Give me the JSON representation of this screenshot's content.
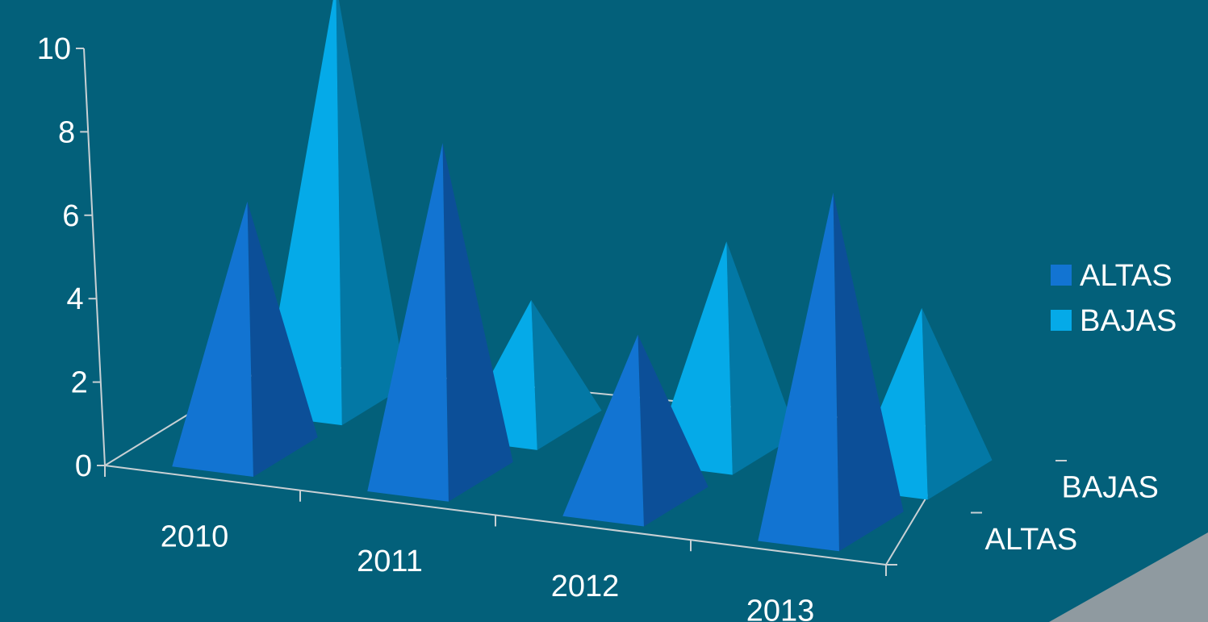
{
  "chart_data": {
    "type": "bar",
    "style": "3d-pyramid",
    "categories": [
      "2010",
      "2011",
      "2012",
      "2013"
    ],
    "depth_categories": [
      "ALTAS",
      "BAJAS"
    ],
    "series": [
      {
        "name": "ALTAS",
        "values": [
          6,
          8,
          4,
          8
        ]
      },
      {
        "name": "BAJAS",
        "values": [
          10,
          3,
          5,
          4
        ]
      }
    ],
    "y_ticks": [
      "0",
      "2",
      "4",
      "6",
      "8",
      "10"
    ],
    "ylim": [
      0,
      10
    ],
    "legend_position": "right",
    "colors": {
      "background": "#03607a",
      "ALTAS": "#1274d2",
      "ALTAS_side": "#0c4f98",
      "BAJAS": "#05aae8",
      "BAJAS_side": "#0378a5",
      "axis": "#c8d0d4"
    }
  }
}
